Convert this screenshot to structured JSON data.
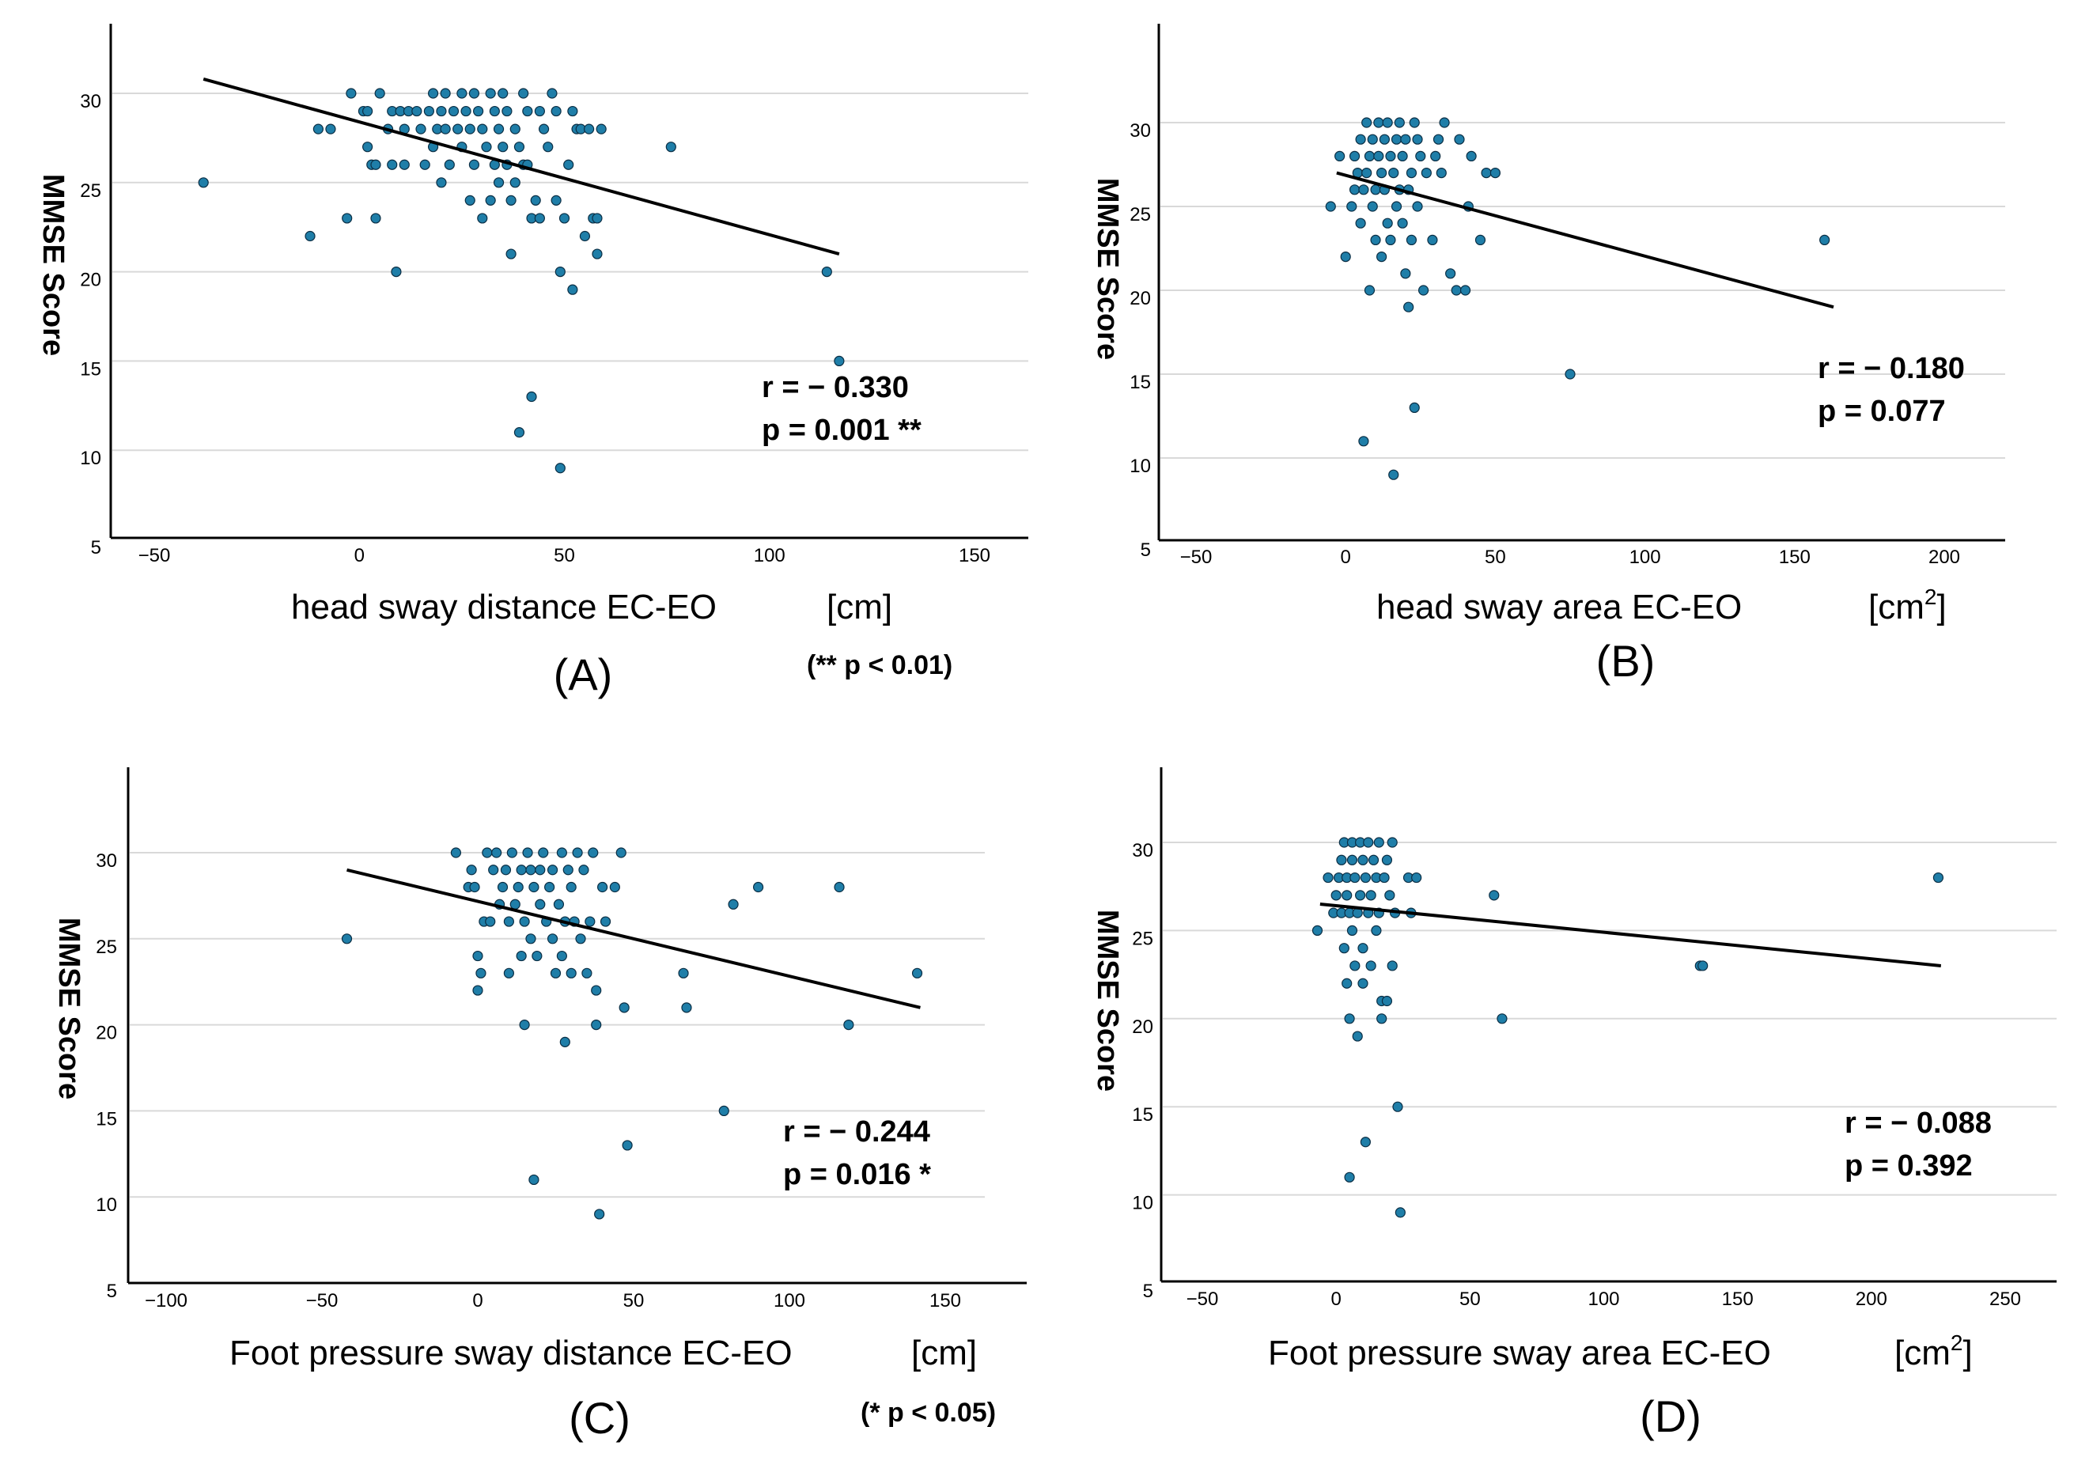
{
  "chart_data": [
    {
      "id": "A",
      "type": "scatter",
      "panel_label": "(A)",
      "xlabel": "head sway distance EC-EO",
      "xunit": "[cm]",
      "ylabel": "MMSE Score",
      "xlim": [
        -55,
        165
      ],
      "ylim": [
        5,
        34
      ],
      "xticks": [
        -50,
        0,
        50,
        100,
        150
      ],
      "xtick_labels": [
        "−50",
        "0",
        "50",
        "100",
        "150"
      ],
      "yticks": [
        5,
        10,
        15,
        20,
        25,
        30
      ],
      "gridlines": [
        10,
        15,
        20,
        25,
        30
      ],
      "stat_r": "r = − 0.330",
      "stat_p": "p = 0.001 **",
      "significance_note": "(** p < 0.01)",
      "fit_line": {
        "x": [
          -38,
          117
        ],
        "y": [
          30.8,
          21.0
        ]
      },
      "points": [
        [
          -38,
          25
        ],
        [
          -12,
          22
        ],
        [
          -10,
          28
        ],
        [
          -7,
          28
        ],
        [
          -3,
          23
        ],
        [
          -2,
          30
        ],
        [
          1,
          29
        ],
        [
          2,
          29
        ],
        [
          2,
          27
        ],
        [
          3,
          26
        ],
        [
          4,
          26
        ],
        [
          4,
          23
        ],
        [
          5,
          30
        ],
        [
          7,
          28
        ],
        [
          8,
          29
        ],
        [
          8,
          26
        ],
        [
          9,
          20
        ],
        [
          10,
          29
        ],
        [
          11,
          26
        ],
        [
          11,
          28
        ],
        [
          12,
          29
        ],
        [
          14,
          29
        ],
        [
          15,
          28
        ],
        [
          16,
          26
        ],
        [
          17,
          29
        ],
        [
          18,
          27
        ],
        [
          18,
          30
        ],
        [
          19,
          28
        ],
        [
          20,
          29
        ],
        [
          20,
          25
        ],
        [
          21,
          30
        ],
        [
          21,
          28
        ],
        [
          22,
          26
        ],
        [
          23,
          29
        ],
        [
          24,
          28
        ],
        [
          25,
          27
        ],
        [
          25,
          30
        ],
        [
          26,
          29
        ],
        [
          27,
          28
        ],
        [
          27,
          24
        ],
        [
          28,
          26
        ],
        [
          28,
          30
        ],
        [
          29,
          29
        ],
        [
          30,
          28
        ],
        [
          30,
          23
        ],
        [
          31,
          27
        ],
        [
          32,
          24
        ],
        [
          32,
          30
        ],
        [
          33,
          29
        ],
        [
          33,
          26
        ],
        [
          34,
          28
        ],
        [
          34,
          25
        ],
        [
          35,
          27
        ],
        [
          35,
          30
        ],
        [
          36,
          29
        ],
        [
          36,
          26
        ],
        [
          37,
          24
        ],
        [
          37,
          21
        ],
        [
          38,
          28
        ],
        [
          38,
          25
        ],
        [
          39,
          11
        ],
        [
          39,
          27
        ],
        [
          40,
          30
        ],
        [
          40,
          26
        ],
        [
          41,
          29
        ],
        [
          41,
          26
        ],
        [
          42,
          23
        ],
        [
          42,
          13
        ],
        [
          43,
          24
        ],
        [
          44,
          29
        ],
        [
          44,
          23
        ],
        [
          45,
          28
        ],
        [
          46,
          27
        ],
        [
          47,
          30
        ],
        [
          48,
          24
        ],
        [
          48,
          29
        ],
        [
          49,
          20
        ],
        [
          49,
          9
        ],
        [
          50,
          23
        ],
        [
          51,
          26
        ],
        [
          52,
          29
        ],
        [
          52,
          19
        ],
        [
          53,
          28
        ],
        [
          54,
          28
        ],
        [
          55,
          22
        ],
        [
          56,
          28
        ],
        [
          57,
          23
        ],
        [
          58,
          21
        ],
        [
          58,
          23
        ],
        [
          59,
          28
        ],
        [
          76,
          27
        ],
        [
          114,
          20
        ],
        [
          117,
          15
        ]
      ]
    },
    {
      "id": "B",
      "type": "scatter",
      "panel_label": "(B)",
      "xlabel": "head sway area EC-EO",
      "xunit": "[cm",
      "xunit_sup": "2",
      "xunit_close": "]",
      "ylabel": "MMSE Score",
      "xlim": [
        -55,
        215
      ],
      "ylim": [
        5,
        35
      ],
      "xticks": [
        -50,
        0,
        50,
        100,
        150,
        200
      ],
      "xtick_labels": [
        "−50",
        "0",
        "50",
        "100",
        "150",
        "200"
      ],
      "yticks": [
        5,
        10,
        15,
        20,
        25,
        30
      ],
      "gridlines": [
        10,
        15,
        20,
        25,
        30
      ],
      "stat_r": "r = − 0.180",
      "stat_p": "p = 0.077",
      "fit_line": {
        "x": [
          -3,
          163
        ],
        "y": [
          27.0,
          19.0
        ]
      },
      "points": [
        [
          -5,
          25
        ],
        [
          -2,
          28
        ],
        [
          0,
          22
        ],
        [
          2,
          25
        ],
        [
          3,
          26
        ],
        [
          3,
          28
        ],
        [
          4,
          27
        ],
        [
          5,
          29
        ],
        [
          5,
          24
        ],
        [
          6,
          26
        ],
        [
          6,
          11
        ],
        [
          7,
          30
        ],
        [
          7,
          27
        ],
        [
          8,
          28
        ],
        [
          8,
          20
        ],
        [
          9,
          29
        ],
        [
          9,
          25
        ],
        [
          10,
          26
        ],
        [
          10,
          23
        ],
        [
          11,
          30
        ],
        [
          11,
          28
        ],
        [
          12,
          27
        ],
        [
          12,
          22
        ],
        [
          13,
          29
        ],
        [
          13,
          26
        ],
        [
          14,
          30
        ],
        [
          14,
          24
        ],
        [
          15,
          28
        ],
        [
          15,
          23
        ],
        [
          16,
          27
        ],
        [
          16,
          9
        ],
        [
          17,
          29
        ],
        [
          17,
          25
        ],
        [
          18,
          26
        ],
        [
          18,
          30
        ],
        [
          19,
          28
        ],
        [
          19,
          24
        ],
        [
          20,
          29
        ],
        [
          20,
          21
        ],
        [
          21,
          26
        ],
        [
          21,
          19
        ],
        [
          22,
          27
        ],
        [
          22,
          23
        ],
        [
          23,
          30
        ],
        [
          23,
          13
        ],
        [
          24,
          25
        ],
        [
          24,
          29
        ],
        [
          25,
          28
        ],
        [
          26,
          20
        ],
        [
          27,
          27
        ],
        [
          29,
          23
        ],
        [
          30,
          28
        ],
        [
          31,
          29
        ],
        [
          32,
          27
        ],
        [
          33,
          30
        ],
        [
          35,
          21
        ],
        [
          37,
          20
        ],
        [
          38,
          29
        ],
        [
          40,
          20
        ],
        [
          41,
          25
        ],
        [
          42,
          28
        ],
        [
          45,
          23
        ],
        [
          47,
          27
        ],
        [
          50,
          27
        ],
        [
          75,
          15
        ],
        [
          160,
          23
        ]
      ]
    },
    {
      "id": "C",
      "type": "scatter",
      "panel_label": "(C)",
      "xlabel": "Foot pressure sway distance EC-EO",
      "xunit": "[cm]",
      "ylabel": "MMSE Score",
      "xlim": [
        -105,
        175
      ],
      "ylim": [
        5,
        35
      ],
      "xticks": [
        -100,
        -50,
        0,
        50,
        100,
        150
      ],
      "xtick_labels": [
        "−100",
        "−50",
        "0",
        "50",
        "100",
        "150"
      ],
      "yticks": [
        5,
        10,
        15,
        20,
        25,
        30
      ],
      "gridlines": [
        10,
        15,
        20,
        25,
        30
      ],
      "stat_r": "r = − 0.244",
      "stat_p": "p = 0.016 *",
      "significance_note": "(* p < 0.05)",
      "fit_line": {
        "x": [
          -42,
          142
        ],
        "y": [
          29.0,
          21.0
        ]
      },
      "points": [
        [
          -42,
          25
        ],
        [
          -7,
          30
        ],
        [
          -3,
          28
        ],
        [
          -2,
          29
        ],
        [
          -1,
          28
        ],
        [
          0,
          24
        ],
        [
          0,
          22
        ],
        [
          1,
          23
        ],
        [
          2,
          26
        ],
        [
          3,
          30
        ],
        [
          4,
          26
        ],
        [
          5,
          29
        ],
        [
          6,
          30
        ],
        [
          7,
          27
        ],
        [
          8,
          28
        ],
        [
          9,
          29
        ],
        [
          10,
          26
        ],
        [
          10,
          23
        ],
        [
          11,
          30
        ],
        [
          12,
          27
        ],
        [
          13,
          28
        ],
        [
          14,
          29
        ],
        [
          14,
          24
        ],
        [
          15,
          26
        ],
        [
          15,
          20
        ],
        [
          16,
          30
        ],
        [
          17,
          29
        ],
        [
          17,
          25
        ],
        [
          18,
          28
        ],
        [
          18,
          11
        ],
        [
          19,
          24
        ],
        [
          20,
          29
        ],
        [
          20,
          27
        ],
        [
          21,
          30
        ],
        [
          22,
          26
        ],
        [
          23,
          28
        ],
        [
          24,
          29
        ],
        [
          24,
          25
        ],
        [
          25,
          23
        ],
        [
          26,
          27
        ],
        [
          27,
          30
        ],
        [
          27,
          24
        ],
        [
          28,
          26
        ],
        [
          28,
          19
        ],
        [
          29,
          29
        ],
        [
          30,
          28
        ],
        [
          30,
          23
        ],
        [
          31,
          26
        ],
        [
          32,
          30
        ],
        [
          33,
          25
        ],
        [
          34,
          29
        ],
        [
          35,
          23
        ],
        [
          36,
          26
        ],
        [
          37,
          30
        ],
        [
          38,
          22
        ],
        [
          38,
          20
        ],
        [
          39,
          9
        ],
        [
          40,
          28
        ],
        [
          41,
          26
        ],
        [
          44,
          28
        ],
        [
          46,
          30
        ],
        [
          47,
          21
        ],
        [
          48,
          13
        ],
        [
          66,
          23
        ],
        [
          67,
          21
        ],
        [
          79,
          15
        ],
        [
          82,
          27
        ],
        [
          90,
          28
        ],
        [
          116,
          28
        ],
        [
          119,
          20
        ],
        [
          141,
          23
        ]
      ]
    },
    {
      "id": "D",
      "type": "scatter",
      "panel_label": "(D)",
      "xlabel": "Foot pressure sway area EC-EO",
      "xunit": "[cm",
      "xunit_sup": "2",
      "xunit_close": "]",
      "ylabel": "MMSE Score",
      "xlim": [
        -60,
        265
      ],
      "ylim": [
        5,
        35
      ],
      "xticks": [
        -50,
        0,
        50,
        100,
        150,
        200,
        250
      ],
      "xtick_labels": [
        "−50",
        "0",
        "50",
        "100",
        "150",
        "200",
        "250"
      ],
      "yticks": [
        5,
        10,
        15,
        20,
        25,
        30
      ],
      "gridlines": [
        10,
        15,
        20,
        25,
        30
      ],
      "stat_r": "r = − 0.088",
      "stat_p": "p = 0.392",
      "fit_line": {
        "x": [
          -6,
          226
        ],
        "y": [
          26.5,
          23.0
        ]
      },
      "points": [
        [
          -7,
          25
        ],
        [
          -3,
          28
        ],
        [
          -1,
          26
        ],
        [
          0,
          27
        ],
        [
          1,
          28
        ],
        [
          2,
          26
        ],
        [
          2,
          29
        ],
        [
          3,
          30
        ],
        [
          3,
          24
        ],
        [
          4,
          27
        ],
        [
          4,
          28
        ],
        [
          4,
          22
        ],
        [
          5,
          26
        ],
        [
          5,
          20
        ],
        [
          5,
          11
        ],
        [
          6,
          29
        ],
        [
          6,
          30
        ],
        [
          6,
          25
        ],
        [
          7,
          28
        ],
        [
          7,
          23
        ],
        [
          8,
          26
        ],
        [
          8,
          19
        ],
        [
          9,
          27
        ],
        [
          9,
          30
        ],
        [
          10,
          29
        ],
        [
          10,
          24
        ],
        [
          10,
          22
        ],
        [
          11,
          28
        ],
        [
          11,
          13
        ],
        [
          12,
          26
        ],
        [
          12,
          30
        ],
        [
          13,
          27
        ],
        [
          13,
          23
        ],
        [
          14,
          29
        ],
        [
          15,
          28
        ],
        [
          15,
          25
        ],
        [
          16,
          30
        ],
        [
          16,
          26
        ],
        [
          17,
          21
        ],
        [
          17,
          20
        ],
        [
          18,
          28
        ],
        [
          19,
          29
        ],
        [
          19,
          21
        ],
        [
          20,
          27
        ],
        [
          21,
          23
        ],
        [
          21,
          30
        ],
        [
          22,
          26
        ],
        [
          23,
          15
        ],
        [
          24,
          9
        ],
        [
          27,
          28
        ],
        [
          28,
          26
        ],
        [
          30,
          28
        ],
        [
          59,
          27
        ],
        [
          62,
          20
        ],
        [
          136,
          23
        ],
        [
          137,
          23
        ],
        [
          225,
          28
        ]
      ]
    }
  ]
}
